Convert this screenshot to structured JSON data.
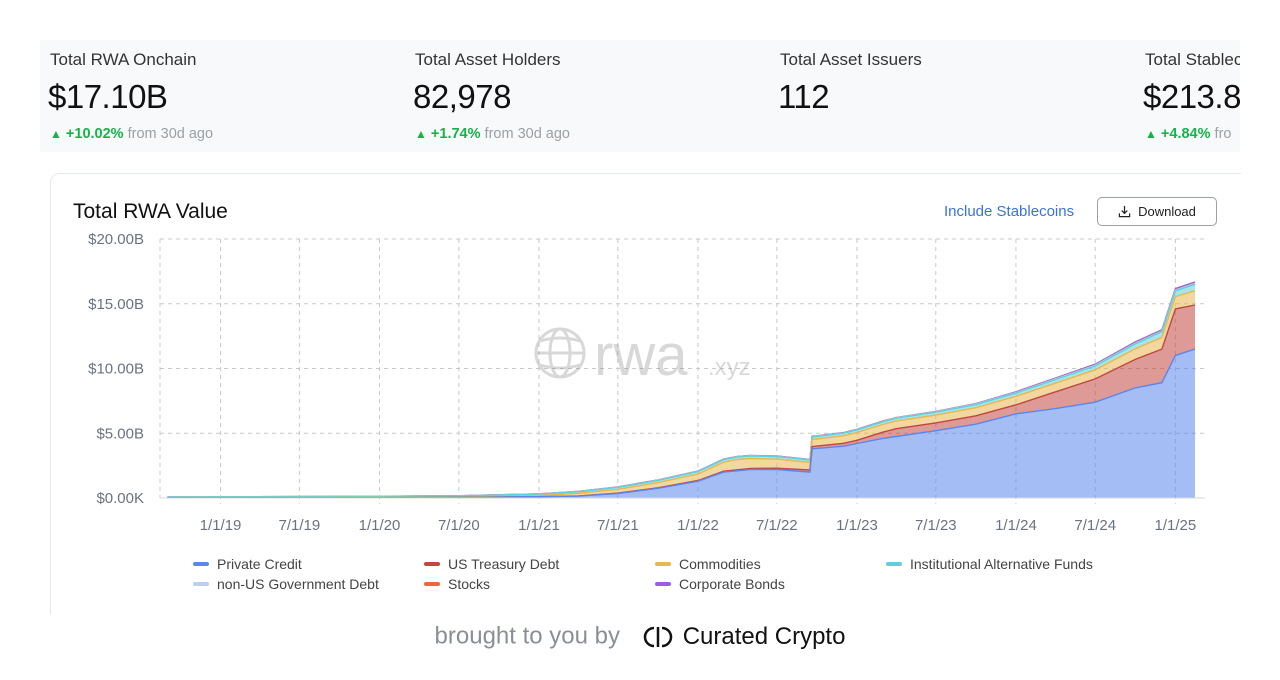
{
  "stats": [
    {
      "label": "Total RWA Onchain",
      "value": "$17.10B",
      "change_pct": "+10.02%",
      "change_suffix": "from 30d ago"
    },
    {
      "label": "Total Asset Holders",
      "value": "82,978",
      "change_pct": "+1.74%",
      "change_suffix": "from 30d ago"
    },
    {
      "label": "Total Asset Issuers",
      "value": "112",
      "change_pct": "",
      "change_suffix": ""
    },
    {
      "label": "Total Stablec",
      "value": "$213.8",
      "change_pct": "+4.84%",
      "change_suffix": "fro"
    }
  ],
  "card": {
    "title": "Total RWA Value",
    "toggle_label": "Include Stablecoins",
    "download_label": "Download"
  },
  "watermark": {
    "main": "rwa",
    "suffix": ".xyz"
  },
  "footer": {
    "text": "brought to you by",
    "brand": "Curated Crypto"
  },
  "colors": {
    "up": "#16b34a",
    "link": "#3b73d9",
    "private_credit": "#5b86ec",
    "us_treasury": "#c1473f",
    "commodities": "#e7b84e",
    "institutional_alt": "#5fcfdc",
    "non_us_gov": "#b9d1ea",
    "stocks": "#f0663a",
    "corporate_bonds": "#9b5de5"
  },
  "chart_data": {
    "type": "area",
    "stacked": true,
    "title": "Total RWA Value",
    "y_ticks": [
      "$0.00K",
      "$5.00B",
      "$10.00B",
      "$15.00B",
      "$20.00B"
    ],
    "ylim": [
      0,
      20
    ],
    "y_unit": "billions USD",
    "x_ticks": [
      "1/1/19",
      "7/1/19",
      "1/1/20",
      "7/1/20",
      "1/1/21",
      "7/1/21",
      "1/1/22",
      "7/1/22",
      "1/1/23",
      "7/1/23",
      "1/1/24",
      "7/1/24",
      "1/1/25"
    ],
    "xlim": [
      "2018-08-15",
      "2025-03-10"
    ],
    "grid": true,
    "legend_position": "bottom",
    "series": [
      {
        "name": "Private Credit",
        "color": "#5b86ec",
        "points": [
          [
            "2018-09-01",
            0.02
          ],
          [
            "2020-01-01",
            0.02
          ],
          [
            "2020-07-01",
            0.04
          ],
          [
            "2021-01-01",
            0.1
          ],
          [
            "2021-04-01",
            0.15
          ],
          [
            "2021-07-01",
            0.35
          ],
          [
            "2021-10-01",
            0.75
          ],
          [
            "2022-01-01",
            1.3
          ],
          [
            "2022-03-01",
            2.0
          ],
          [
            "2022-05-01",
            2.2
          ],
          [
            "2022-07-01",
            2.2
          ],
          [
            "2022-09-15",
            2.0
          ],
          [
            "2022-09-20",
            3.8
          ],
          [
            "2022-12-01",
            4.0
          ],
          [
            "2023-03-01",
            4.6
          ],
          [
            "2023-07-01",
            5.2
          ],
          [
            "2023-10-01",
            5.7
          ],
          [
            "2024-01-01",
            6.5
          ],
          [
            "2024-04-01",
            6.9
          ],
          [
            "2024-07-01",
            7.4
          ],
          [
            "2024-10-01",
            8.5
          ],
          [
            "2024-12-01",
            8.9
          ],
          [
            "2025-01-01",
            11.0
          ],
          [
            "2025-02-15",
            11.5
          ]
        ]
      },
      {
        "name": "US Treasury Debt",
        "color": "#c1473f",
        "points": [
          [
            "2018-09-01",
            0
          ],
          [
            "2021-01-01",
            0
          ],
          [
            "2022-01-01",
            0.05
          ],
          [
            "2022-07-01",
            0.1
          ],
          [
            "2023-01-01",
            0.25
          ],
          [
            "2023-04-01",
            0.6
          ],
          [
            "2023-07-01",
            0.6
          ],
          [
            "2024-01-01",
            0.7
          ],
          [
            "2024-04-01",
            1.3
          ],
          [
            "2024-07-01",
            1.8
          ],
          [
            "2024-10-01",
            2.2
          ],
          [
            "2024-12-01",
            2.6
          ],
          [
            "2025-01-01",
            3.6
          ],
          [
            "2025-02-15",
            3.4
          ]
        ]
      },
      {
        "name": "Commodities",
        "color": "#e7b84e",
        "points": [
          [
            "2018-09-01",
            0.01
          ],
          [
            "2020-07-01",
            0.03
          ],
          [
            "2021-01-01",
            0.1
          ],
          [
            "2021-07-01",
            0.3
          ],
          [
            "2022-01-01",
            0.5
          ],
          [
            "2022-04-01",
            0.8
          ],
          [
            "2022-07-01",
            0.7
          ],
          [
            "2022-10-01",
            0.55
          ],
          [
            "2023-01-01",
            0.6
          ],
          [
            "2023-07-01",
            0.6
          ],
          [
            "2024-01-01",
            0.65
          ],
          [
            "2024-07-01",
            0.7
          ],
          [
            "2025-01-01",
            0.95
          ],
          [
            "2025-02-15",
            1.1
          ]
        ]
      },
      {
        "name": "Institutional Alternative Funds",
        "color": "#5fcfdc",
        "points": [
          [
            "2018-09-01",
            0.05
          ],
          [
            "2021-01-01",
            0.1
          ],
          [
            "2022-01-01",
            0.2
          ],
          [
            "2023-01-01",
            0.2
          ],
          [
            "2024-01-01",
            0.25
          ],
          [
            "2024-07-01",
            0.3
          ],
          [
            "2025-01-01",
            0.45
          ],
          [
            "2025-02-15",
            0.5
          ]
        ]
      },
      {
        "name": "non-US Government Debt",
        "color": "#b9d1ea",
        "points": [
          [
            "2018-09-01",
            0
          ],
          [
            "2023-01-01",
            0.02
          ],
          [
            "2024-01-01",
            0.04
          ],
          [
            "2025-02-15",
            0.06
          ]
        ]
      },
      {
        "name": "Stocks",
        "color": "#f0663a",
        "points": [
          [
            "2018-09-01",
            0
          ],
          [
            "2024-01-01",
            0.01
          ],
          [
            "2025-02-15",
            0.02
          ]
        ]
      },
      {
        "name": "Corporate Bonds",
        "color": "#9b5de5",
        "points": [
          [
            "2018-09-01",
            0
          ],
          [
            "2023-06-01",
            0.02
          ],
          [
            "2024-01-01",
            0.05
          ],
          [
            "2025-02-15",
            0.1
          ]
        ]
      }
    ]
  }
}
